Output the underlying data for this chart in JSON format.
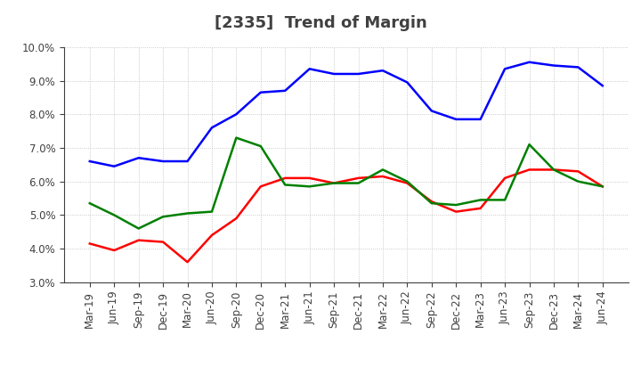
{
  "title": "[2335]  Trend of Margin",
  "x_labels": [
    "Mar-19",
    "Jun-19",
    "Sep-19",
    "Dec-19",
    "Mar-20",
    "Jun-20",
    "Sep-20",
    "Dec-20",
    "Mar-21",
    "Jun-21",
    "Sep-21",
    "Dec-21",
    "Mar-22",
    "Jun-22",
    "Sep-22",
    "Dec-22",
    "Mar-23",
    "Jun-23",
    "Sep-23",
    "Dec-23",
    "Mar-24",
    "Jun-24"
  ],
  "ordinary_income": [
    6.6,
    6.45,
    6.7,
    6.6,
    6.6,
    7.6,
    8.0,
    8.65,
    8.7,
    9.35,
    9.2,
    9.2,
    9.3,
    8.95,
    8.1,
    7.85,
    7.85,
    9.35,
    9.55,
    9.45,
    9.4,
    8.85
  ],
  "net_income": [
    4.15,
    3.95,
    4.25,
    4.2,
    3.6,
    4.4,
    4.9,
    5.85,
    6.1,
    6.1,
    5.95,
    6.1,
    6.15,
    5.95,
    5.4,
    5.1,
    5.2,
    6.1,
    6.35,
    6.35,
    6.3,
    5.85
  ],
  "operating_cashflow": [
    5.35,
    5.0,
    4.6,
    4.95,
    5.05,
    5.1,
    7.3,
    7.05,
    5.9,
    5.85,
    5.95,
    5.95,
    6.35,
    6.0,
    5.35,
    5.3,
    5.45,
    5.45,
    7.1,
    6.35,
    6.0,
    5.85
  ],
  "ylim": [
    3.0,
    10.0
  ],
  "yticks": [
    3.0,
    4.0,
    5.0,
    6.0,
    7.0,
    8.0,
    9.0,
    10.0
  ],
  "line_colors": {
    "ordinary_income": "#0000ff",
    "net_income": "#ff0000",
    "operating_cashflow": "#008000"
  },
  "background_color": "#ffffff",
  "grid_color": "#aaaaaa",
  "title_color": "#404040",
  "title_fontsize": 13,
  "axis_fontsize": 8.5,
  "legend_fontsize": 9.5
}
